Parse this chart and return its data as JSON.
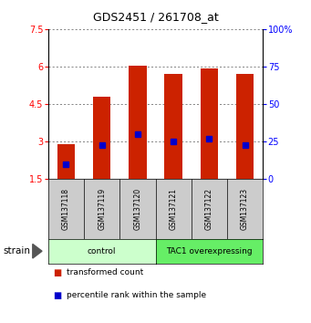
{
  "title": "GDS2451 / 261708_at",
  "samples": [
    "GSM137118",
    "GSM137119",
    "GSM137120",
    "GSM137121",
    "GSM137122",
    "GSM137123"
  ],
  "bar_tops": [
    2.9,
    4.8,
    6.02,
    5.7,
    5.92,
    5.72
  ],
  "bar_bottom": 1.5,
  "blue_dots": [
    2.1,
    2.85,
    3.3,
    3.0,
    3.12,
    2.85
  ],
  "bar_color": "#cc2200",
  "dot_color": "#0000cc",
  "ylim": [
    1.5,
    7.5
  ],
  "yticks_left": [
    1.5,
    3.0,
    4.5,
    6.0,
    7.5
  ],
  "ytick_labels_left": [
    "1.5",
    "3",
    "4.5",
    "6",
    "7.5"
  ],
  "yticks_right": [
    0,
    25,
    50,
    75,
    100
  ],
  "ytick_labels_right": [
    "0",
    "25",
    "50",
    "75",
    "100%"
  ],
  "groups": [
    {
      "label": "control",
      "indices": [
        0,
        1,
        2
      ],
      "color": "#ccffcc"
    },
    {
      "label": "TAC1 overexpressing",
      "indices": [
        3,
        4,
        5
      ],
      "color": "#66ee66"
    }
  ],
  "strain_label": "strain",
  "legend_items": [
    {
      "color": "#cc2200",
      "label": "transformed count"
    },
    {
      "color": "#0000cc",
      "label": "percentile rank within the sample"
    }
  ],
  "bar_width": 0.5,
  "bg_color": "#ffffff",
  "plot_bg": "#ffffff",
  "grid_color": "#555555",
  "sample_box_color": "#cccccc"
}
